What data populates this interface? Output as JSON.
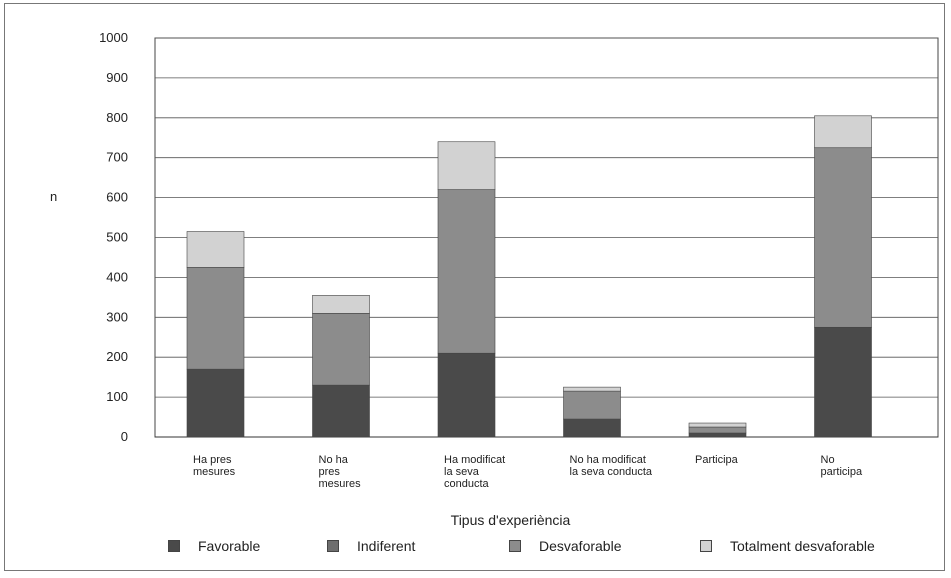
{
  "chart_data": {
    "type": "bar",
    "stacked": true,
    "categories": [
      "Ha pres\nmesures",
      "No ha\npres\nmesures",
      "Ha modificat\nla seva\nconducta",
      "No ha modificat\nla seva conducta",
      "Participa",
      "No\nparticipa"
    ],
    "series": [
      {
        "name": "Favorable",
        "values": [
          170,
          130,
          210,
          45,
          10,
          275
        ],
        "color": "#4a4a4a"
      },
      {
        "name": "Indiferent",
        "values": [
          0,
          0,
          0,
          0,
          0,
          0
        ],
        "color": "#6e6e6e"
      },
      {
        "name": "Desvaforable",
        "values": [
          255,
          180,
          410,
          70,
          15,
          450
        ],
        "color": "#8c8c8c"
      },
      {
        "name": "Totalment desvaforable",
        "values": [
          90,
          45,
          120,
          10,
          10,
          80
        ],
        "color": "#d2d2d2"
      }
    ],
    "xlabel": "Tipus d'experiència",
    "ylabel": "n",
    "yticks": [
      0,
      100,
      200,
      300,
      400,
      500,
      600,
      700,
      800,
      900,
      1000
    ],
    "ylim": [
      0,
      1000
    ],
    "grid": true,
    "legend_position": "bottom"
  }
}
